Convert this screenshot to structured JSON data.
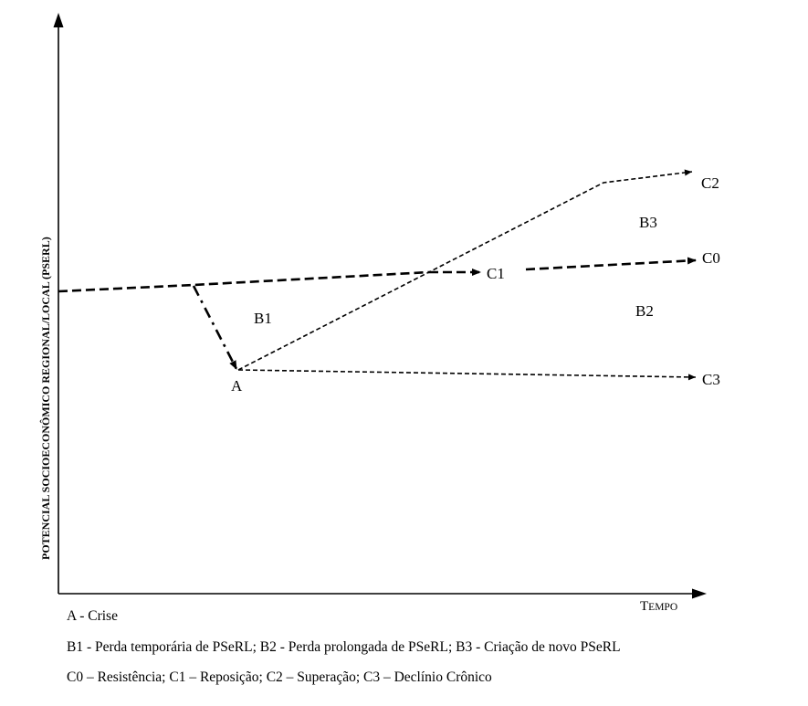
{
  "diagram": {
    "y_axis_label": "POTENCIAL SOCIOECONÔMICO REGIONAL/LOCAL (PSERL)",
    "x_axis_label_first": "T",
    "x_axis_label_rest": "EMPO",
    "point_labels": {
      "A": "A",
      "C0": "C0",
      "C1": "C1",
      "C2": "C2",
      "C3": "C3"
    },
    "region_labels": {
      "B1": "B1",
      "B2": "B2",
      "B3": "B3"
    }
  },
  "legend": {
    "line1": "A - Crise",
    "line2": "B1 - Perda temporária  de  PSeRL; B2 - Perda prolongada de PSeRL; B3 - Criação de novo PSeRL",
    "line3": "C0 – Resistência; C1 – Reposição; C2 – Superação; C3 – Declínio Crônico"
  }
}
